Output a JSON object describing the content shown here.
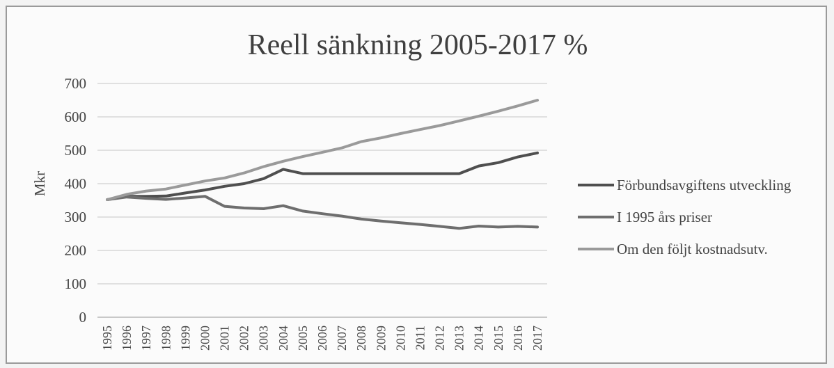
{
  "chart_data": {
    "type": "line",
    "title": "Reell sänkning 2005-2017 %",
    "xlabel": "",
    "ylabel": "Mkr",
    "x": [
      1995,
      1996,
      1997,
      1998,
      1999,
      2000,
      2001,
      2002,
      2003,
      2004,
      2005,
      2006,
      2007,
      2008,
      2009,
      2010,
      2011,
      2012,
      2013,
      2014,
      2015,
      2016,
      2017
    ],
    "ylim": [
      0,
      700
    ],
    "yticks": [
      0,
      100,
      200,
      300,
      400,
      500,
      600,
      700
    ],
    "grid": true,
    "legend_position": "right",
    "series": [
      {
        "name": "Förbundsavgiftens utveckling",
        "color": "#4f4f4f",
        "values": [
          352,
          362,
          362,
          363,
          372,
          381,
          392,
          400,
          415,
          443,
          430,
          430,
          430,
          430,
          430,
          430,
          430,
          430,
          430,
          453,
          463,
          480,
          492
        ]
      },
      {
        "name": "I 1995 års priser",
        "color": "#6e6e6e",
        "values": [
          352,
          360,
          356,
          353,
          357,
          362,
          332,
          327,
          325,
          334,
          318,
          310,
          303,
          294,
          288,
          283,
          278,
          272,
          266,
          273,
          270,
          272,
          270
        ]
      },
      {
        "name": "Om den följt kostnadsutv.",
        "color": "#9a9a9a",
        "values": [
          352,
          368,
          378,
          384,
          396,
          408,
          417,
          432,
          451,
          467,
          481,
          494,
          507,
          526,
          537,
          550,
          562,
          574,
          588,
          602,
          617,
          633,
          650
        ]
      }
    ]
  }
}
